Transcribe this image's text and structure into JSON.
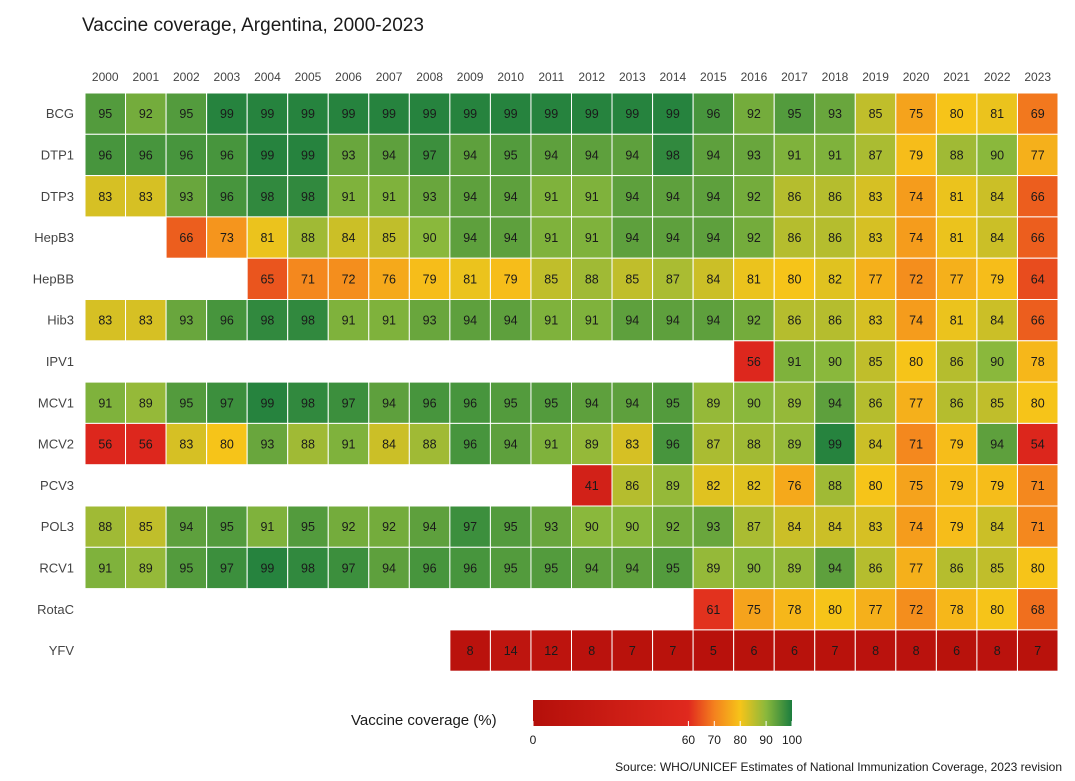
{
  "chart_data": {
    "type": "heatmap",
    "title": "Vaccine coverage, Argentina, 2000-2023",
    "years": [
      "2000",
      "2001",
      "2002",
      "2003",
      "2004",
      "2005",
      "2006",
      "2007",
      "2008",
      "2009",
      "2010",
      "2011",
      "2012",
      "2013",
      "2014",
      "2015",
      "2016",
      "2017",
      "2018",
      "2019",
      "2020",
      "2021",
      "2022",
      "2023"
    ],
    "vaccines": [
      "BCG",
      "DTP1",
      "DTP3",
      "HepB3",
      "HepBB",
      "Hib3",
      "IPV1",
      "MCV1",
      "MCV2",
      "PCV3",
      "POL3",
      "RCV1",
      "RotaC",
      "YFV"
    ],
    "values": [
      [
        95,
        92,
        95,
        99,
        99,
        99,
        99,
        99,
        99,
        99,
        99,
        99,
        99,
        99,
        99,
        96,
        92,
        95,
        93,
        85,
        75,
        80,
        81,
        69
      ],
      [
        96,
        96,
        96,
        96,
        99,
        99,
        93,
        94,
        97,
        94,
        95,
        94,
        94,
        94,
        98,
        94,
        93,
        91,
        91,
        87,
        79,
        88,
        90,
        77
      ],
      [
        83,
        83,
        93,
        96,
        98,
        98,
        91,
        91,
        93,
        94,
        94,
        91,
        91,
        94,
        94,
        94,
        92,
        86,
        86,
        83,
        74,
        81,
        84,
        66
      ],
      [
        null,
        null,
        66,
        73,
        81,
        88,
        84,
        85,
        90,
        94,
        94,
        91,
        91,
        94,
        94,
        94,
        92,
        86,
        86,
        83,
        74,
        81,
        84,
        66
      ],
      [
        null,
        null,
        null,
        null,
        65,
        71,
        72,
        76,
        79,
        81,
        79,
        85,
        88,
        85,
        87,
        84,
        81,
        80,
        82,
        77,
        72,
        77,
        79,
        64
      ],
      [
        83,
        83,
        93,
        96,
        98,
        98,
        91,
        91,
        93,
        94,
        94,
        91,
        91,
        94,
        94,
        94,
        92,
        86,
        86,
        83,
        74,
        81,
        84,
        66
      ],
      [
        null,
        null,
        null,
        null,
        null,
        null,
        null,
        null,
        null,
        null,
        null,
        null,
        null,
        null,
        null,
        null,
        56,
        91,
        90,
        85,
        80,
        86,
        90,
        78
      ],
      [
        91,
        89,
        95,
        97,
        99,
        98,
        97,
        94,
        96,
        96,
        95,
        95,
        94,
        94,
        95,
        89,
        90,
        89,
        94,
        86,
        77,
        86,
        85,
        80
      ],
      [
        56,
        56,
        83,
        80,
        93,
        88,
        91,
        84,
        88,
        96,
        94,
        91,
        89,
        83,
        96,
        87,
        88,
        89,
        99,
        84,
        71,
        79,
        94,
        54
      ],
      [
        null,
        null,
        null,
        null,
        null,
        null,
        null,
        null,
        null,
        null,
        null,
        null,
        41,
        86,
        89,
        82,
        82,
        76,
        88,
        80,
        75,
        79,
        79,
        71
      ],
      [
        88,
        85,
        94,
        95,
        91,
        95,
        92,
        92,
        94,
        97,
        95,
        93,
        90,
        90,
        92,
        93,
        87,
        84,
        84,
        83,
        74,
        79,
        84,
        71
      ],
      [
        91,
        89,
        95,
        97,
        99,
        98,
        97,
        94,
        96,
        96,
        95,
        95,
        94,
        94,
        95,
        89,
        90,
        89,
        94,
        86,
        77,
        86,
        85,
        80
      ],
      [
        null,
        null,
        null,
        null,
        null,
        null,
        null,
        null,
        null,
        null,
        null,
        null,
        null,
        null,
        null,
        61,
        75,
        78,
        80,
        77,
        72,
        78,
        80,
        68
      ],
      [
        null,
        null,
        null,
        null,
        null,
        null,
        null,
        null,
        null,
        8,
        14,
        12,
        8,
        7,
        7,
        5,
        6,
        6,
        7,
        8,
        8,
        6,
        8,
        7
      ]
    ],
    "legend": {
      "title": "Vaccine coverage (%)",
      "ticks": [
        "0",
        "60",
        "70",
        "80",
        "90",
        "100"
      ],
      "stops": [
        {
          "value": 0,
          "color": "#b40f0a"
        },
        {
          "value": 60,
          "color": "#e0291e"
        },
        {
          "value": 70,
          "color": "#f4811e"
        },
        {
          "value": 80,
          "color": "#f6c419"
        },
        {
          "value": 90,
          "color": "#8ab83c"
        },
        {
          "value": 100,
          "color": "#1b7d3e"
        }
      ]
    },
    "source": "Source: WHO/UNICEF Estimates of National Immunization Coverage, 2023 revision"
  }
}
